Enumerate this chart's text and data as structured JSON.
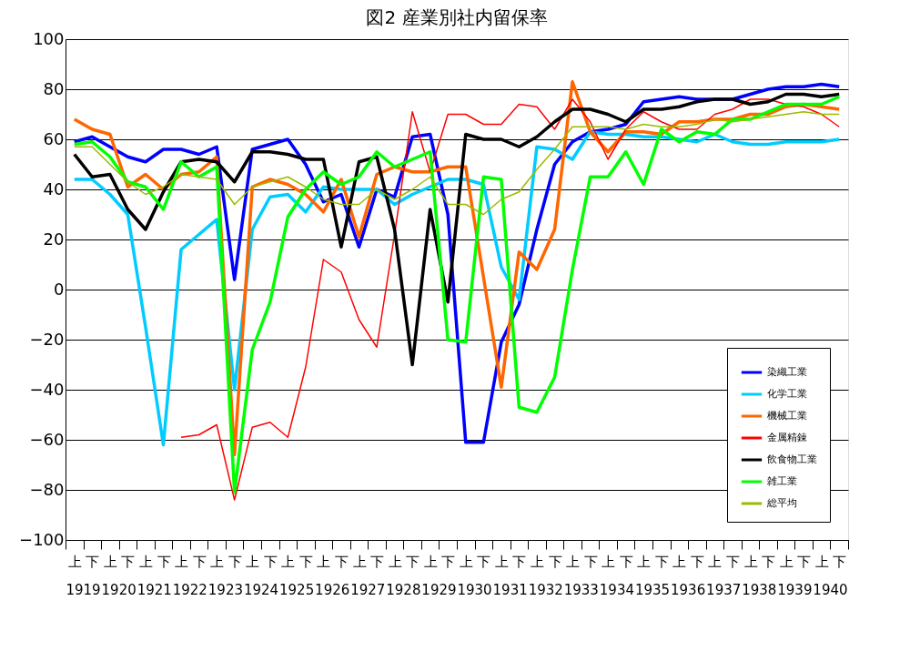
{
  "chart_data": {
    "type": "line",
    "title": "図2  産業別社内留保率",
    "categories": [
      "上",
      "下",
      "上",
      "下",
      "上",
      "下",
      "上",
      "下",
      "上",
      "下",
      "上",
      "下",
      "上",
      "下",
      "上",
      "下",
      "上",
      "下",
      "上",
      "下",
      "上",
      "下",
      "上",
      "下",
      "上",
      "下",
      "上",
      "下",
      "上",
      "下",
      "上",
      "下",
      "上",
      "下",
      "上",
      "下",
      "上",
      "下",
      "上",
      "下",
      "上",
      "下",
      "上",
      "下"
    ],
    "annotations": [
      "1919",
      "1920",
      "1921",
      "1922",
      "1923",
      "1924",
      "1925",
      "1926",
      "1927",
      "1928",
      "1929",
      "1930",
      "1931",
      "1932",
      "1933",
      "1934",
      "1935",
      "1936",
      "1937",
      "1938",
      "1939",
      "1940"
    ],
    "ylim": [
      -100,
      100
    ],
    "yticks": [
      -100,
      -80,
      -60,
      -40,
      -20,
      0,
      20,
      40,
      60,
      80,
      100
    ],
    "grid": "y",
    "legend": "bottom right",
    "marker": "none",
    "line_style": "solid",
    "series": [
      {
        "name": "染織工業",
        "color": "#0000ff",
        "values": [
          59,
          61,
          57,
          53,
          51,
          56,
          56,
          54,
          57,
          4,
          56,
          58,
          60,
          50,
          35,
          38,
          17,
          40,
          37,
          61,
          62,
          30,
          -61,
          -61,
          -21,
          -6,
          24,
          50,
          59,
          63,
          64,
          66,
          75,
          76,
          77,
          76,
          76,
          76,
          78,
          80,
          81,
          81,
          82,
          81
        ]
      },
      {
        "name": "化学工業",
        "color": "#00ccff",
        "values": [
          44,
          44,
          38,
          30,
          -15,
          -62,
          16,
          22,
          28,
          -40,
          24,
          37,
          38,
          31,
          41,
          40,
          40,
          40,
          34,
          38,
          41,
          44,
          44,
          42,
          9,
          -4,
          57,
          56,
          52,
          63,
          62,
          62,
          61,
          61,
          60,
          59,
          62,
          59,
          58,
          58,
          59,
          59,
          59,
          60
        ]
      },
      {
        "name": "機械工業",
        "color": "#ff6600",
        "values": [
          68,
          64,
          62,
          41,
          46,
          40,
          46,
          47,
          53,
          -66,
          41,
          44,
          42,
          38,
          31,
          44,
          21,
          46,
          49,
          47,
          47,
          49,
          49,
          5,
          -39,
          15,
          8,
          24,
          83,
          63,
          55,
          63,
          63,
          62,
          67,
          67,
          68,
          68,
          70,
          70,
          73,
          74,
          73,
          72
        ]
      },
      {
        "name": "金属精錬",
        "color": "#ff0000",
        "values": [
          null,
          null,
          null,
          null,
          null,
          null,
          -59,
          -58,
          -54,
          -84,
          -55,
          -53,
          -59,
          -31,
          12,
          7,
          -12,
          -23,
          22,
          71,
          47,
          70,
          70,
          66,
          66,
          74,
          73,
          64,
          76,
          67,
          52,
          64,
          71,
          67,
          64,
          64,
          70,
          72,
          76,
          76,
          74,
          73,
          70,
          65
        ]
      },
      {
        "name": "飲食物工業",
        "color": "#000000",
        "values": [
          54,
          45,
          46,
          32,
          24,
          39,
          51,
          52,
          51,
          43,
          55,
          55,
          54,
          52,
          52,
          17,
          51,
          53,
          24,
          -30,
          32,
          -5,
          62,
          60,
          60,
          57,
          61,
          67,
          72,
          72,
          70,
          67,
          72,
          72,
          73,
          75,
          76,
          76,
          74,
          75,
          78,
          78,
          77,
          78
        ]
      },
      {
        "name": "雑工業",
        "color": "#00ff00",
        "values": [
          58,
          59,
          53,
          43,
          41,
          32,
          51,
          45,
          49,
          -81,
          -24,
          -5,
          29,
          40,
          47,
          42,
          45,
          55,
          49,
          52,
          55,
          -20,
          -21,
          45,
          44,
          -47,
          -49,
          -35,
          8,
          45,
          45,
          55,
          42,
          64,
          59,
          63,
          62,
          68,
          68,
          71,
          74,
          74,
          74,
          77
        ]
      },
      {
        "name": "総平均",
        "color": "#99bb00",
        "values": [
          57,
          57,
          50,
          43,
          38,
          41,
          46,
          45,
          44,
          34,
          41,
          43,
          45,
          41,
          36,
          34,
          34,
          40,
          36,
          40,
          45,
          34,
          34,
          30,
          36,
          39,
          48,
          56,
          65,
          65,
          65,
          64,
          66,
          65,
          65,
          66,
          68,
          67,
          68,
          69,
          70,
          71,
          70,
          70
        ]
      }
    ]
  }
}
